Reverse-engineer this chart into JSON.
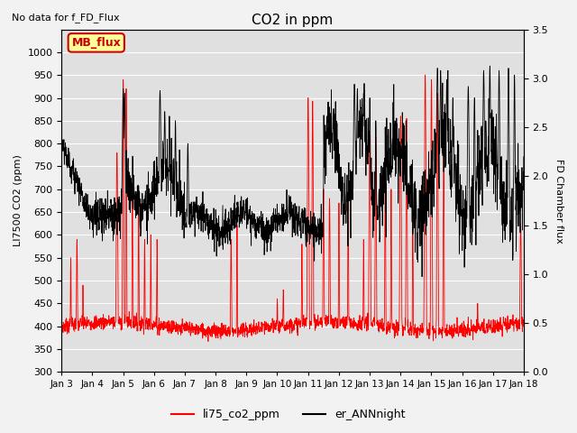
{
  "title": "CO2 in ppm",
  "top_left_text": "No data for f_FD_Flux",
  "ylabel_left": "LI7500 CO2 (ppm)",
  "ylabel_right": "FD Chamber flux",
  "ylim_left": [
    300,
    1050
  ],
  "ylim_right": [
    0.0,
    3.5
  ],
  "yticks_left": [
    300,
    350,
    400,
    450,
    500,
    550,
    600,
    650,
    700,
    750,
    800,
    850,
    900,
    950,
    1000
  ],
  "yticks_right": [
    0.0,
    0.5,
    1.0,
    1.5,
    2.0,
    2.5,
    3.0,
    3.5
  ],
  "xtick_labels": [
    "Jan 3",
    "Jan 4",
    "Jan 5",
    "Jan 6",
    "Jan 7",
    "Jan 8",
    "Jan 9",
    "Jan 10",
    "Jan 11",
    "Jan 12",
    "Jan 13",
    "Jan 14",
    "Jan 15",
    "Jan 16",
    "Jan 17",
    "Jan 18"
  ],
  "legend_label_box": "MB_flux",
  "legend_label1": "li75_co2_ppm",
  "legend_label2": "er_ANNnight",
  "line_color_red": "#ff0000",
  "line_color_black": "#000000",
  "fig_facecolor": "#f2f2f2",
  "plot_facecolor": "#e0e0e0",
  "grid_color": "#ffffff",
  "box_facecolor": "#ffff99",
  "box_edgecolor": "#cc0000",
  "n_days": 15,
  "pts_per_day": 144
}
